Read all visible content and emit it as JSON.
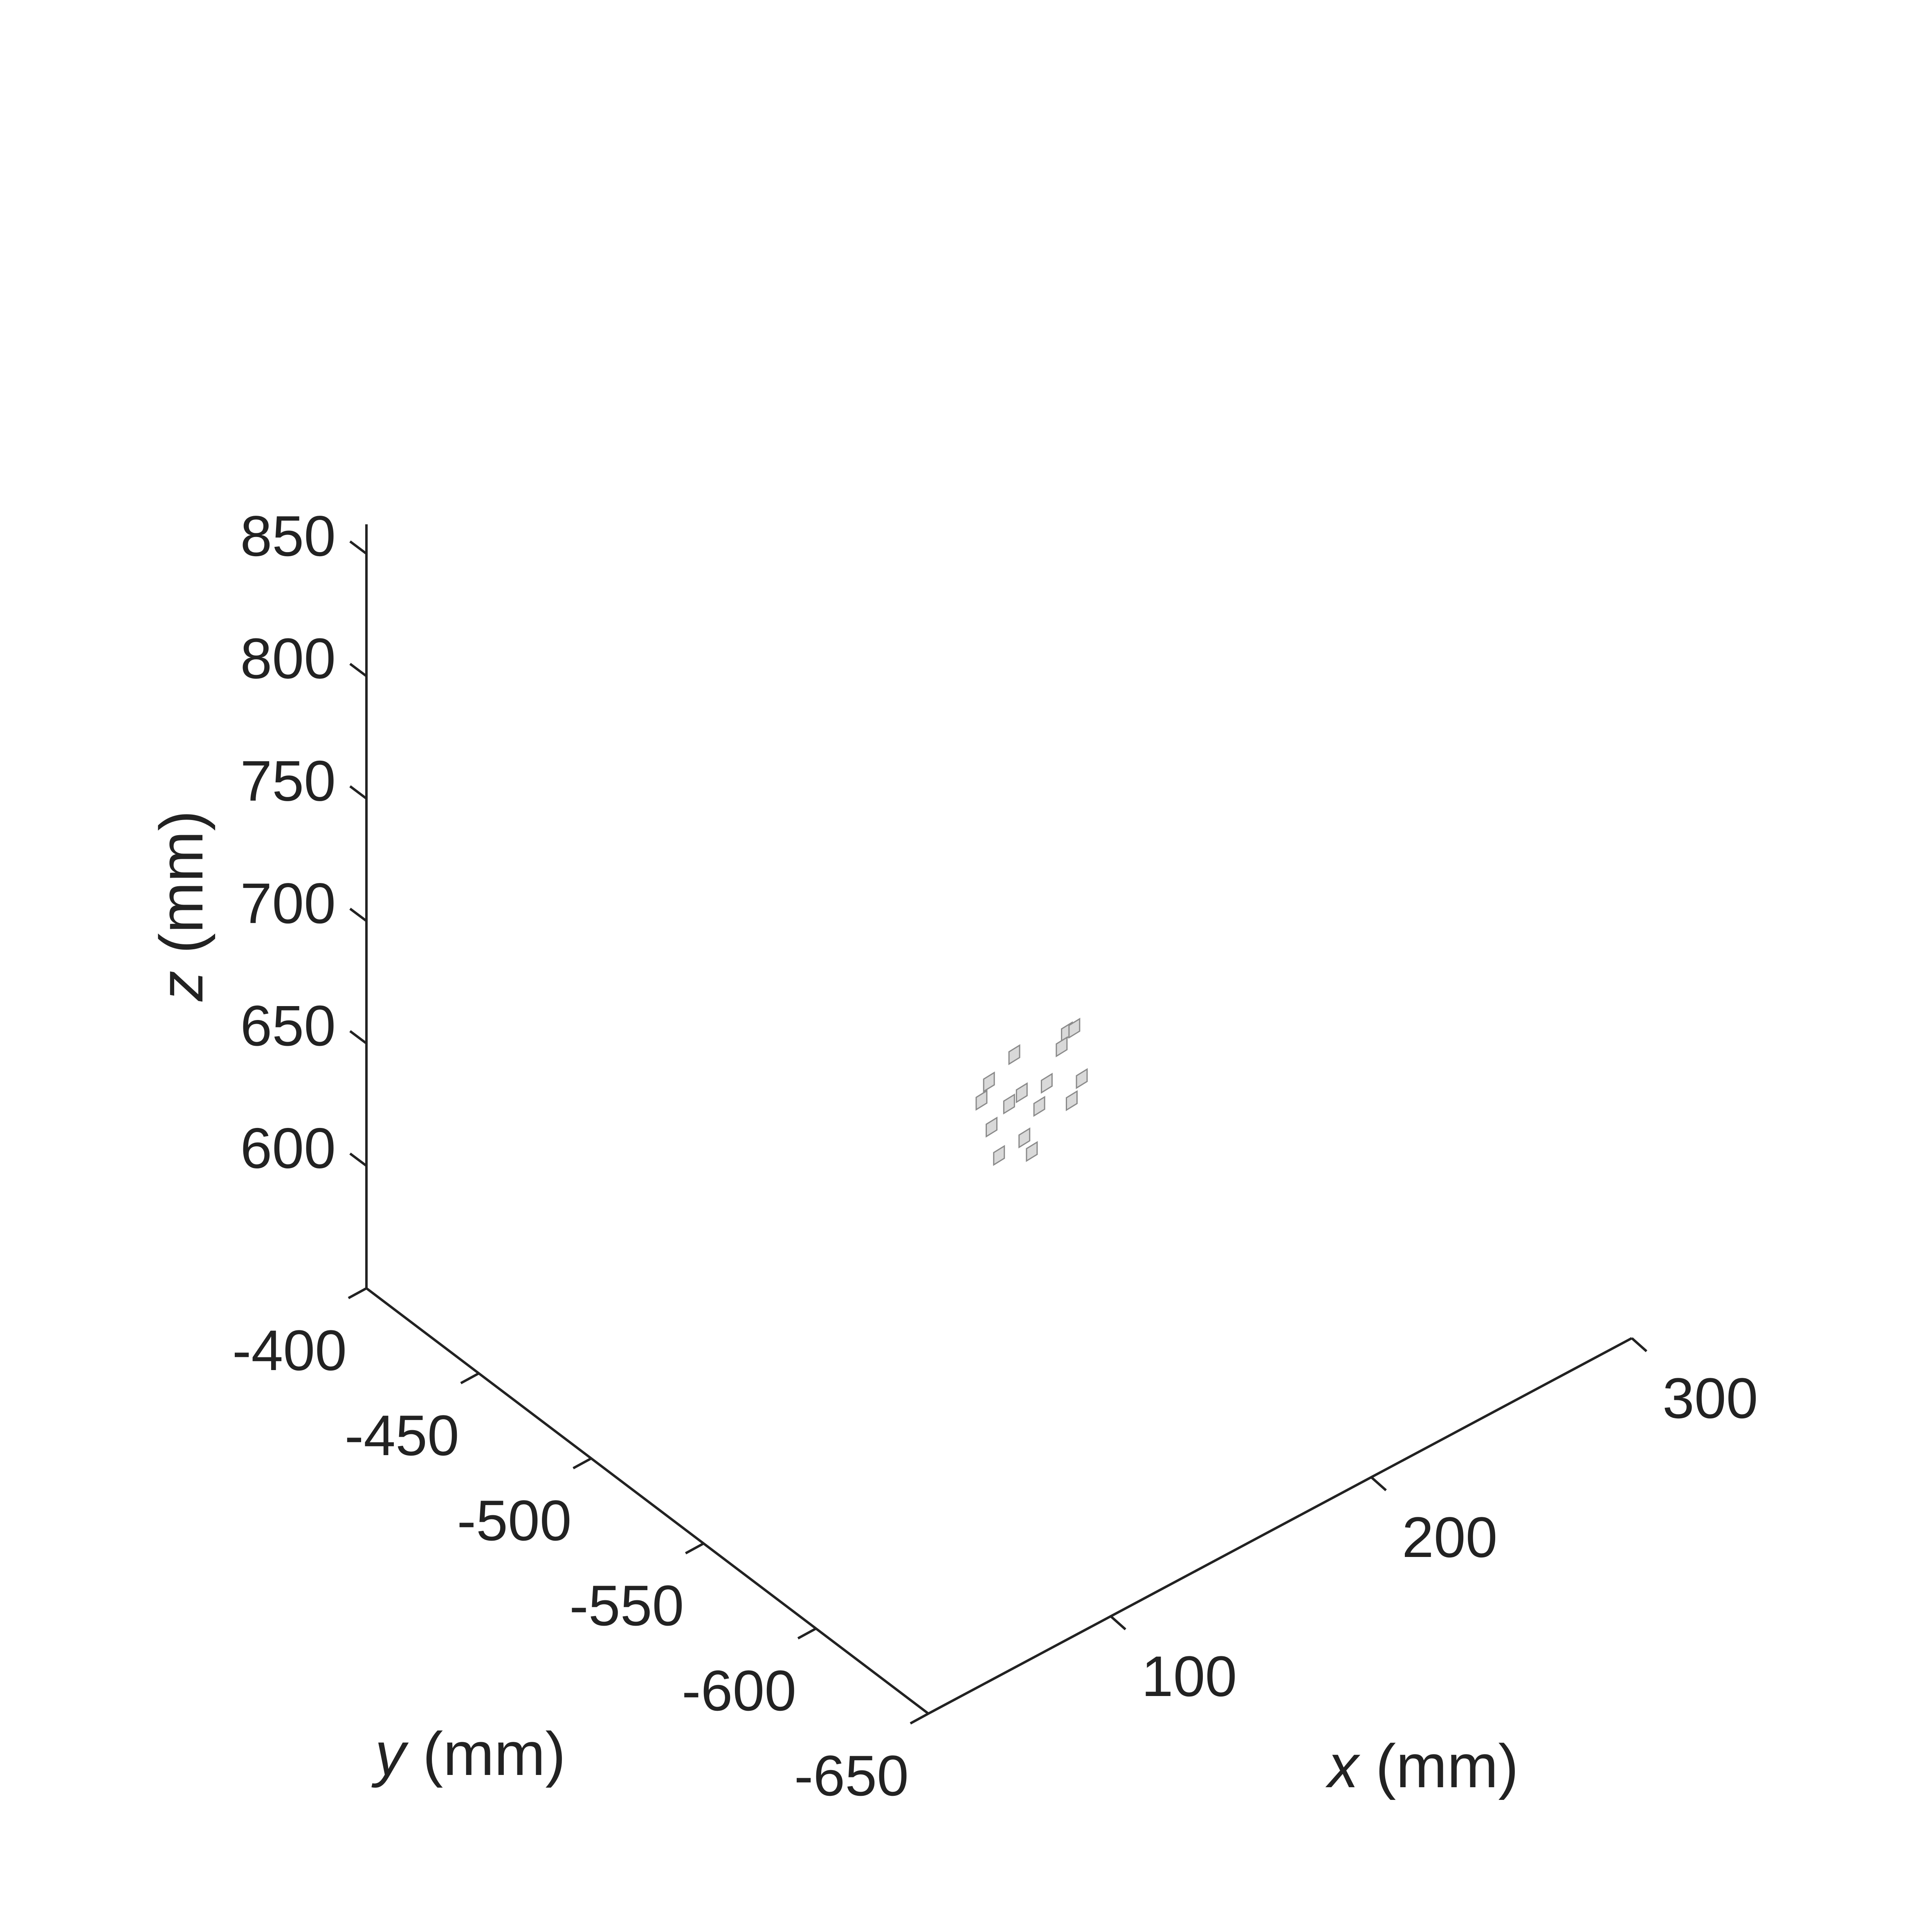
{
  "chart_data": {
    "type": "scatter3d",
    "marker": "small-square",
    "xlabel": {
      "var": "x",
      "unit": "(mm)"
    },
    "ylabel": {
      "var": "y",
      "unit": "(mm)"
    },
    "zlabel": {
      "var": "z",
      "unit": "(mm)"
    },
    "xlim": [
      30,
      300
    ],
    "ylim": [
      -400,
      -650
    ],
    "zlim": [
      550,
      862
    ],
    "x_ticks": [
      100,
      200,
      300
    ],
    "y_ticks": [
      -400,
      -450,
      -500,
      -550,
      -600,
      -650
    ],
    "z_ticks": [
      600,
      650,
      700,
      750,
      800,
      850
    ],
    "x_tick_labels": [
      "100",
      "200",
      "300"
    ],
    "y_tick_labels": [
      "-400",
      "-450",
      "-500",
      "-550",
      "-600",
      "-650"
    ],
    "z_tick_labels": [
      "600",
      "650",
      "700",
      "750",
      "800",
      "850"
    ],
    "grid": false,
    "colors": {
      "axis": "#222222",
      "marker_fill": "#d9d9d9",
      "marker_edge": "#8a8a8a"
    },
    "points": [
      {
        "x": 168,
        "y": -517,
        "z": 635
      },
      {
        "x": 176,
        "y": -519,
        "z": 643
      },
      {
        "x": 191,
        "y": -525,
        "z": 648
      },
      {
        "x": 189,
        "y": -525,
        "z": 643
      },
      {
        "x": 193,
        "y": -526,
        "z": 649
      },
      {
        "x": 166,
        "y": -516,
        "z": 628
      },
      {
        "x": 174,
        "y": -519,
        "z": 624
      },
      {
        "x": 178,
        "y": -520,
        "z": 627
      },
      {
        "x": 185,
        "y": -523,
        "z": 629
      },
      {
        "x": 195,
        "y": -527,
        "z": 628
      },
      {
        "x": 169,
        "y": -517,
        "z": 616
      },
      {
        "x": 183,
        "y": -522,
        "z": 620
      },
      {
        "x": 192,
        "y": -526,
        "z": 620
      },
      {
        "x": 171,
        "y": -518,
        "z": 604
      },
      {
        "x": 179,
        "y": -520,
        "z": 608
      },
      {
        "x": 181,
        "y": -521,
        "z": 602
      }
    ]
  }
}
